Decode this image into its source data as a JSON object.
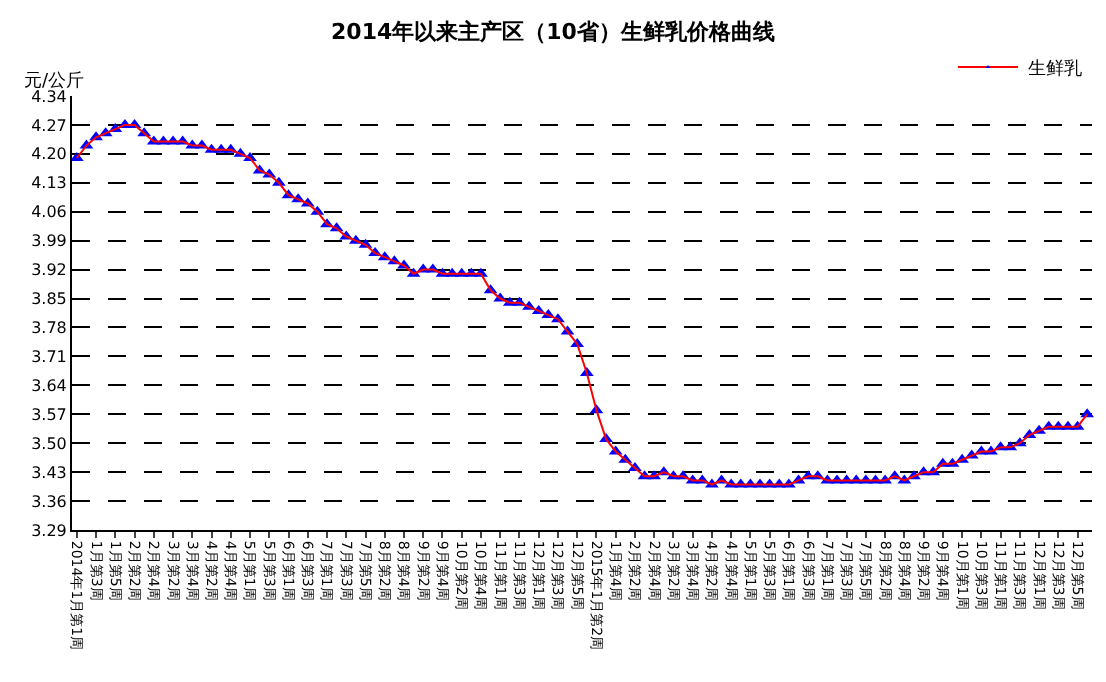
{
  "chart_data": {
    "type": "line",
    "title": "2014年以来主产区（10省）生鲜乳价格曲线",
    "ylabel": "元/公斤",
    "categories": [
      "2014年1月第1周",
      null,
      "1月第3周",
      null,
      "1月第5周",
      null,
      "2月第2周",
      null,
      "2月第4周",
      null,
      "3月第2周",
      null,
      "3月第4周",
      null,
      "4月第2周",
      null,
      "4月第4周",
      null,
      "5月第1周",
      null,
      "5月第3周",
      null,
      "6月第1周",
      null,
      "6月第3周",
      null,
      "7月第1周",
      null,
      "7月第3周",
      null,
      "7月第5周",
      null,
      "8月第2周",
      null,
      "8月第4周",
      null,
      "9月第2周",
      null,
      "9月第4周",
      null,
      "10月第2周",
      null,
      "10月第4周",
      null,
      "11月第1周",
      null,
      "11月第3周",
      null,
      "12月第1周",
      null,
      "12月第3周",
      null,
      "12月第5周",
      null,
      "2015年1月第2周",
      null,
      "1月第4周",
      null,
      "2月第2周",
      null,
      "2月第4周",
      null,
      "3月第2周",
      null,
      "3月第4周",
      null,
      "4月第2周",
      null,
      "4月第4周",
      null,
      "5月第1周",
      null,
      "5月第3周",
      null,
      "6月第1周",
      null,
      "6月第3周",
      null,
      "7月第1周",
      null,
      "7月第3周",
      null,
      "7月第5周",
      null,
      "8月第2周",
      null,
      "8月第4周",
      null,
      "9月第2周",
      null,
      "9月第4周",
      null,
      "10月第1周",
      null,
      "10月第3周",
      null,
      "11月第1周",
      null,
      "11月第3周",
      null,
      "12月第1周",
      null,
      "12月第3周",
      null,
      "12月第5周",
      null
    ],
    "series": [
      {
        "name": "生鲜乳",
        "color": "#0000ff",
        "values": [
          4.19,
          4.22,
          4.24,
          4.25,
          4.26,
          4.27,
          4.27,
          4.25,
          4.23,
          4.23,
          4.23,
          4.23,
          4.22,
          4.22,
          4.21,
          4.21,
          4.21,
          4.2,
          4.19,
          4.16,
          4.15,
          4.13,
          4.1,
          4.09,
          4.08,
          4.06,
          4.03,
          4.02,
          4.0,
          3.99,
          3.98,
          3.96,
          3.95,
          3.94,
          3.93,
          3.91,
          3.92,
          3.92,
          3.91,
          3.91,
          3.91,
          3.91,
          3.91,
          3.87,
          3.85,
          3.84,
          3.84,
          3.83,
          3.82,
          3.81,
          3.8,
          3.77,
          3.74,
          3.67,
          3.58,
          3.51,
          3.48,
          3.46,
          3.44,
          3.42,
          3.42,
          3.43,
          3.42,
          3.42,
          3.41,
          3.41,
          3.4,
          3.41,
          3.4,
          3.4,
          3.4,
          3.4,
          3.4,
          3.4,
          3.4,
          3.41,
          3.42,
          3.42,
          3.41,
          3.41,
          3.41,
          3.41,
          3.41,
          3.41,
          3.41,
          3.42,
          3.41,
          3.42,
          3.43,
          3.43,
          3.45,
          3.45,
          3.46,
          3.47,
          3.48,
          3.48,
          3.49,
          3.49,
          3.5,
          3.52,
          3.53,
          3.54,
          3.54,
          3.54,
          3.54,
          3.57
        ]
      }
    ],
    "ylim": [
      3.29,
      4.34
    ],
    "yticks": [
      3.29,
      3.36,
      3.43,
      {
        "value": 3.5,
        "label": "3.50"
      },
      3.57,
      3.64,
      3.71,
      3.78,
      3.85,
      3.92,
      3.99,
      4.06,
      4.13,
      {
        "value": 4.2,
        "label": "4.20"
      },
      4.27,
      4.34
    ],
    "grid": "y",
    "legend": "top right",
    "marker": "triangle",
    "line_style": "solid"
  }
}
